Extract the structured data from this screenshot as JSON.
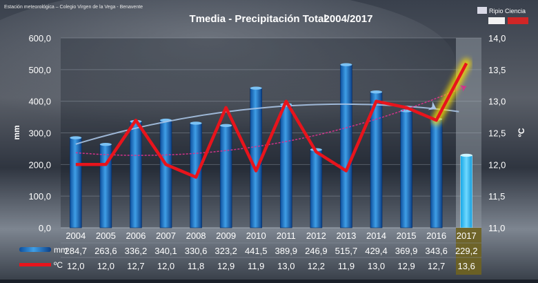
{
  "source_label": "Estación meteorológica – Colegio Virgen de la Vega - Benavente",
  "brand_label": "Ripio Ciencia",
  "chart_data": {
    "type": "bar",
    "title": "Tmedia - Precipitación Total",
    "period": "2004/2017",
    "categories": [
      "2004",
      "2005",
      "2006",
      "2007",
      "2008",
      "2009",
      "2010",
      "2011",
      "2012",
      "2013",
      "2014",
      "2015",
      "2016",
      "2017"
    ],
    "series": [
      {
        "name": "mm",
        "kind": "bar",
        "axis": "left",
        "values": [
          284.7,
          263.6,
          336.2,
          340.1,
          330.6,
          323.2,
          441.5,
          389.9,
          246.9,
          515.7,
          429.4,
          369.9,
          343.6,
          229.2
        ],
        "labels": [
          "284,7",
          "263,6",
          "336,2",
          "340,1",
          "330,6",
          "323,2",
          "441,5",
          "389,9",
          "246,9",
          "515,7",
          "429,4",
          "369,9",
          "343,6",
          "229,2"
        ]
      },
      {
        "name": "ºC",
        "kind": "line",
        "axis": "right",
        "values": [
          12.0,
          12.0,
          12.7,
          12.0,
          11.8,
          12.9,
          11.9,
          13.0,
          12.2,
          11.9,
          13.0,
          12.9,
          12.7,
          13.6
        ],
        "labels": [
          "12,0",
          "12,0",
          "12,7",
          "12,0",
          "11,8",
          "12,9",
          "11,9",
          "13,0",
          "12,2",
          "11,9",
          "13,0",
          "12,9",
          "12,7",
          "13,6"
        ]
      }
    ],
    "ylabel_left": "mm",
    "ylabel_right": "ºC",
    "ylim_left": [
      0,
      600
    ],
    "ylim_right": [
      11,
      14
    ],
    "yticks_left": [
      "0,0",
      "100,0",
      "200,0",
      "300,0",
      "400,0",
      "500,0",
      "600,0"
    ],
    "yticks_right": [
      "11,0",
      "11,5",
      "12,0",
      "12,5",
      "13,0",
      "13,5",
      "14,0"
    ],
    "yticks_left_values": [
      0,
      100,
      200,
      300,
      400,
      500,
      600
    ],
    "yticks_right_values": [
      11,
      11.5,
      12,
      12.5,
      13,
      13.5,
      14
    ],
    "highlight_category": "2017",
    "trendlines": [
      "precipitation-polynomial",
      "temperature-polynomial"
    ],
    "grid": true,
    "legend": "bottom-table"
  }
}
